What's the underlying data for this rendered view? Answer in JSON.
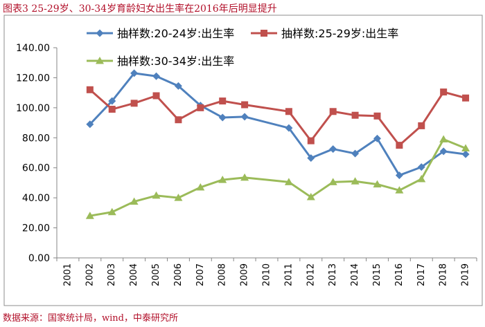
{
  "figure": {
    "caption": "图表3 25-29岁、30-34岁育龄妇女出生率在2016年后明显提升",
    "source": "数据来源：国家统计局，wind，中泰研究所"
  },
  "chart_data": {
    "type": "line",
    "title": "",
    "xlabel": "",
    "ylabel": "",
    "ylim": [
      0,
      140
    ],
    "yticks": [
      "0.00",
      "20.00",
      "40.00",
      "60.00",
      "80.00",
      "100.00",
      "120.00",
      "140.00"
    ],
    "categories": [
      "2001",
      "2002",
      "2003",
      "2004",
      "2005",
      "2006",
      "2007",
      "2008",
      "2009",
      "2010",
      "2011",
      "2012",
      "2013",
      "2014",
      "2015",
      "2016",
      "2017",
      "2018",
      "2019"
    ],
    "legend_position": "top",
    "grid": false,
    "series": [
      {
        "name": "抽样数:20-24岁:出生率",
        "color": "#4f81bd",
        "marker": "diamond",
        "values": [
          null,
          89.0,
          104.5,
          123.0,
          121.0,
          114.5,
          101.5,
          93.5,
          94.0,
          null,
          86.5,
          66.5,
          72.5,
          69.5,
          79.5,
          55.0,
          60.5,
          71.0,
          69.0
        ]
      },
      {
        "name": "抽样数:25-29岁:出生率",
        "color": "#c0504d",
        "marker": "square",
        "values": [
          null,
          112.0,
          99.0,
          103.0,
          108.0,
          92.0,
          100.0,
          104.5,
          102.0,
          null,
          97.5,
          78.0,
          97.5,
          95.0,
          94.5,
          75.0,
          88.0,
          110.5,
          106.5
        ]
      },
      {
        "name": "抽样数:30-34岁:出生率",
        "color": "#9bbb59",
        "marker": "triangle",
        "values": [
          null,
          28.0,
          30.5,
          37.5,
          41.5,
          40.0,
          47.0,
          52.0,
          53.5,
          null,
          50.5,
          40.5,
          50.5,
          51.0,
          49.0,
          45.0,
          52.5,
          79.0,
          73.0
        ]
      }
    ]
  }
}
